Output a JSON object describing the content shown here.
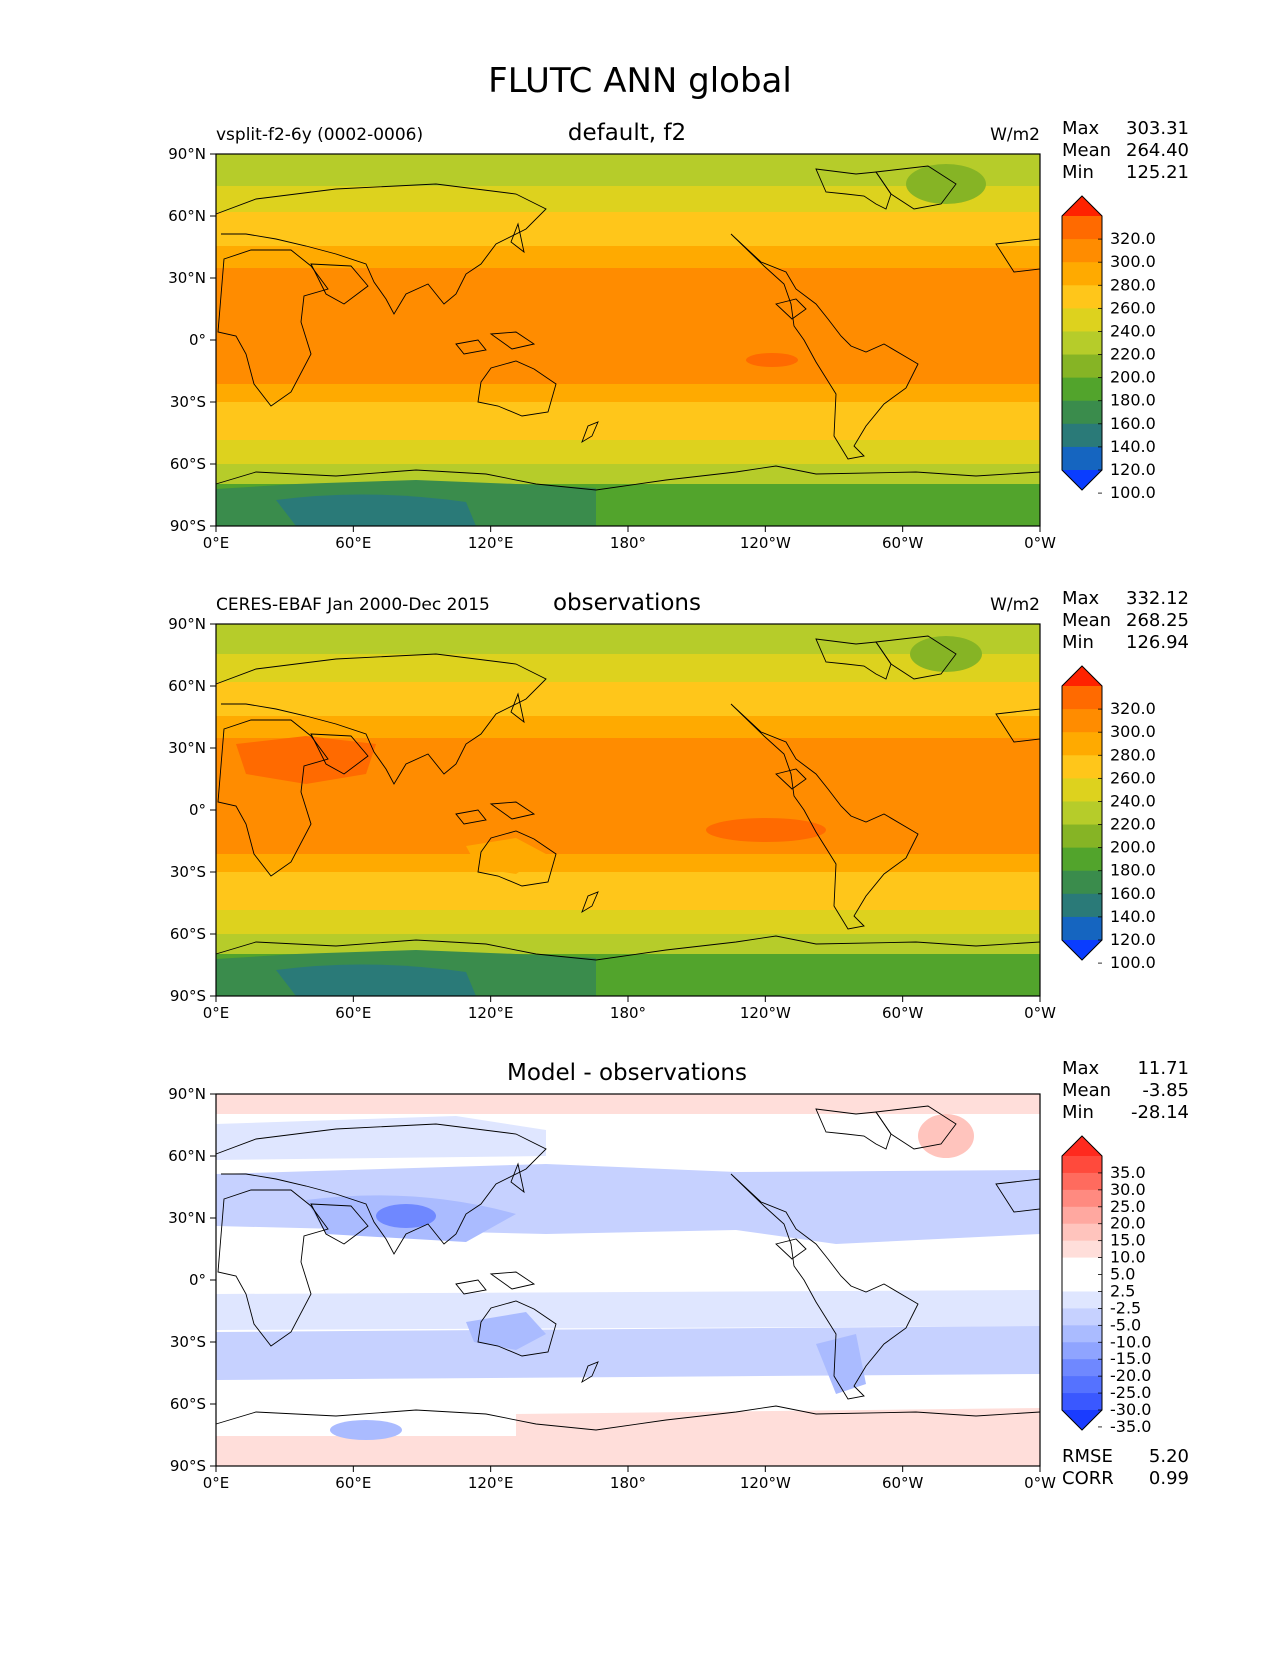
{
  "figure": {
    "title": "FLUTC ANN global"
  },
  "axes": {
    "lat_ticks": [
      "90°N",
      "60°N",
      "30°N",
      "0°",
      "30°S",
      "60°S",
      "90°S"
    ],
    "lon_ticks": [
      "0°E",
      "60°E",
      "120°E",
      "180°",
      "120°W",
      "60°W",
      "0°W"
    ]
  },
  "colors": {
    "levels_abs": [
      "#ff2200",
      "#ff6a00",
      "#ff8c00",
      "#ffaa00",
      "#ffc61a",
      "#ddd21e",
      "#b6cc2a",
      "#86b425",
      "#52a42c",
      "#3a8c4c",
      "#2a7a78",
      "#1565c0",
      "#0a3dff"
    ],
    "levels_diff": [
      "#ff2a1e",
      "#ff4a3c",
      "#ff6b5e",
      "#ff8a80",
      "#ffa8a0",
      "#ffc4bd",
      "#ffdeda",
      "#ffffff",
      "#ffffff",
      "#dfe6ff",
      "#c6d1ff",
      "#aabbff",
      "#8fa4ff",
      "#6f88ff",
      "#5572ff",
      "#3a58ff",
      "#1a3cff"
    ]
  },
  "panels": [
    {
      "id": "test",
      "left_label": "vsplit-f2-6y (0002-0006)",
      "title": "default, f2",
      "units": "W/m2",
      "stats": {
        "max_label": "Max",
        "max": "303.31",
        "mean_label": "Mean",
        "mean": "264.40",
        "min_label": "Min",
        "min": "125.21"
      },
      "colorbar": [
        "320.0",
        "300.0",
        "280.0",
        "260.0",
        "240.0",
        "220.0",
        "200.0",
        "180.0",
        "160.0",
        "140.0",
        "120.0",
        "100.0"
      ]
    },
    {
      "id": "ref",
      "left_label": "CERES-EBAF Jan 2000-Dec 2015",
      "title": "observations",
      "units": "W/m2",
      "stats": {
        "max_label": "Max",
        "max": "332.12",
        "mean_label": "Mean",
        "mean": "268.25",
        "min_label": "Min",
        "min": "126.94"
      },
      "colorbar": [
        "320.0",
        "300.0",
        "280.0",
        "260.0",
        "240.0",
        "220.0",
        "200.0",
        "180.0",
        "160.0",
        "140.0",
        "120.0",
        "100.0"
      ]
    },
    {
      "id": "diff",
      "left_label": "",
      "title": "Model - observations",
      "units": "",
      "stats": {
        "max_label": "Max",
        "max": "11.71",
        "mean_label": "Mean",
        "mean": "-3.85",
        "min_label": "Min",
        "min": "-28.14"
      },
      "colorbar": [
        "35.0",
        "30.0",
        "25.0",
        "20.0",
        "15.0",
        "10.0",
        "5.0",
        "2.5",
        "-2.5",
        "-5.0",
        "-10.0",
        "-15.0",
        "-20.0",
        "-25.0",
        "-30.0",
        "-35.0"
      ],
      "rmse_label": "RMSE",
      "rmse": "5.20",
      "corr_label": "CORR",
      "corr": "0.99"
    }
  ]
}
